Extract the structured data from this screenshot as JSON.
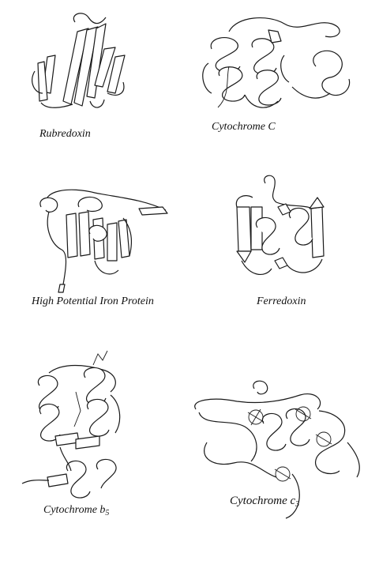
{
  "panels": [
    {
      "id": "rubredoxin",
      "label": "Rubredoxin"
    },
    {
      "id": "cytochrome-c",
      "label": "Cytochrome C"
    },
    {
      "id": "hipip",
      "label": "High Potential Iron Protein"
    },
    {
      "id": "ferredoxin",
      "label": "Ferredoxin"
    },
    {
      "id": "cytochrome-b5",
      "label": "Cytochrome b",
      "label_sub": "5"
    },
    {
      "id": "cytochrome-c3",
      "label": "Cytochrome c",
      "label_sub": "3"
    }
  ]
}
